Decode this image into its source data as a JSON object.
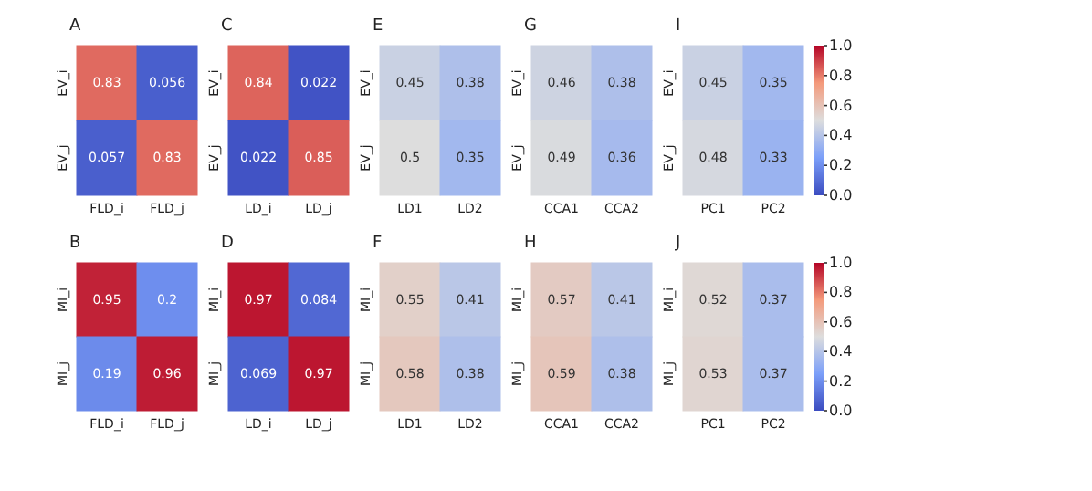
{
  "chart_data": [
    {
      "type": "heatmap",
      "title": "A",
      "categories": [
        "FLD_i",
        "FLD_j"
      ],
      "y_categories": [
        "EV_i",
        "EV_j"
      ],
      "cells": [
        [
          0.83,
          0.056
        ],
        [
          0.057,
          0.83
        ]
      ],
      "data_labels": true
    },
    {
      "type": "heatmap",
      "title": "C",
      "categories": [
        "LD_i",
        "LD_j"
      ],
      "y_categories": [
        "EV_i",
        "EV_j"
      ],
      "cells": [
        [
          0.84,
          0.022
        ],
        [
          0.022,
          0.85
        ]
      ],
      "data_labels": true
    },
    {
      "type": "heatmap",
      "title": "E",
      "categories": [
        "LD1",
        "LD2"
      ],
      "y_categories": [
        "EV_i",
        "EV_j"
      ],
      "cells": [
        [
          0.45,
          0.38
        ],
        [
          0.5,
          0.35
        ]
      ],
      "data_labels": true
    },
    {
      "type": "heatmap",
      "title": "G",
      "categories": [
        "CCA1",
        "CCA2"
      ],
      "y_categories": [
        "EV_i",
        "EV_j"
      ],
      "cells": [
        [
          0.46,
          0.38
        ],
        [
          0.49,
          0.36
        ]
      ],
      "data_labels": true
    },
    {
      "type": "heatmap",
      "title": "I",
      "categories": [
        "PC1",
        "PC2"
      ],
      "y_categories": [
        "EV_i",
        "EV_j"
      ],
      "cells": [
        [
          0.45,
          0.35
        ],
        [
          0.48,
          0.33
        ]
      ],
      "data_labels": true,
      "clim": [
        0,
        1
      ],
      "cticks": [
        {
          "value": 0,
          "label": "0.0"
        },
        {
          "value": 0.2,
          "label": "0.2"
        },
        {
          "value": 0.4,
          "label": "0.4"
        },
        {
          "value": 0.6,
          "label": "0.6"
        },
        {
          "value": 0.8,
          "label": "0.8"
        },
        {
          "value": 1,
          "label": "1.0"
        }
      ]
    },
    {
      "type": "heatmap",
      "title": "B",
      "categories": [
        "FLD_i",
        "FLD_j"
      ],
      "y_categories": [
        "MI_i",
        "MI_j"
      ],
      "cells": [
        [
          0.95,
          0.2
        ],
        [
          0.19,
          0.96
        ]
      ],
      "data_labels": true
    },
    {
      "type": "heatmap",
      "title": "D",
      "categories": [
        "LD_i",
        "LD_j"
      ],
      "y_categories": [
        "MI_i",
        "MI_j"
      ],
      "cells": [
        [
          0.97,
          0.084
        ],
        [
          0.069,
          0.97
        ]
      ],
      "data_labels": true
    },
    {
      "type": "heatmap",
      "title": "F",
      "categories": [
        "LD1",
        "LD2"
      ],
      "y_categories": [
        "MI_i",
        "MI_j"
      ],
      "cells": [
        [
          0.55,
          0.41
        ],
        [
          0.58,
          0.38
        ]
      ],
      "data_labels": true
    },
    {
      "type": "heatmap",
      "title": "H",
      "categories": [
        "CCA1",
        "CCA2"
      ],
      "y_categories": [
        "MI_i",
        "MI_j"
      ],
      "cells": [
        [
          0.57,
          0.41
        ],
        [
          0.59,
          0.38
        ]
      ],
      "data_labels": true
    },
    {
      "type": "heatmap",
      "title": "J",
      "categories": [
        "PC1",
        "PC2"
      ],
      "y_categories": [
        "MI_i",
        "MI_j"
      ],
      "cells": [
        [
          0.52,
          0.37
        ],
        [
          0.53,
          0.37
        ]
      ],
      "data_labels": true,
      "clim": [
        0,
        1
      ],
      "cticks": [
        {
          "value": 0,
          "label": "0.0"
        },
        {
          "value": 0.2,
          "label": "0.2"
        },
        {
          "value": 0.4,
          "label": "0.4"
        },
        {
          "value": 0.6,
          "label": "0.6"
        },
        {
          "value": 0.8,
          "label": "0.8"
        },
        {
          "value": 1,
          "label": "1.0"
        }
      ]
    }
  ]
}
